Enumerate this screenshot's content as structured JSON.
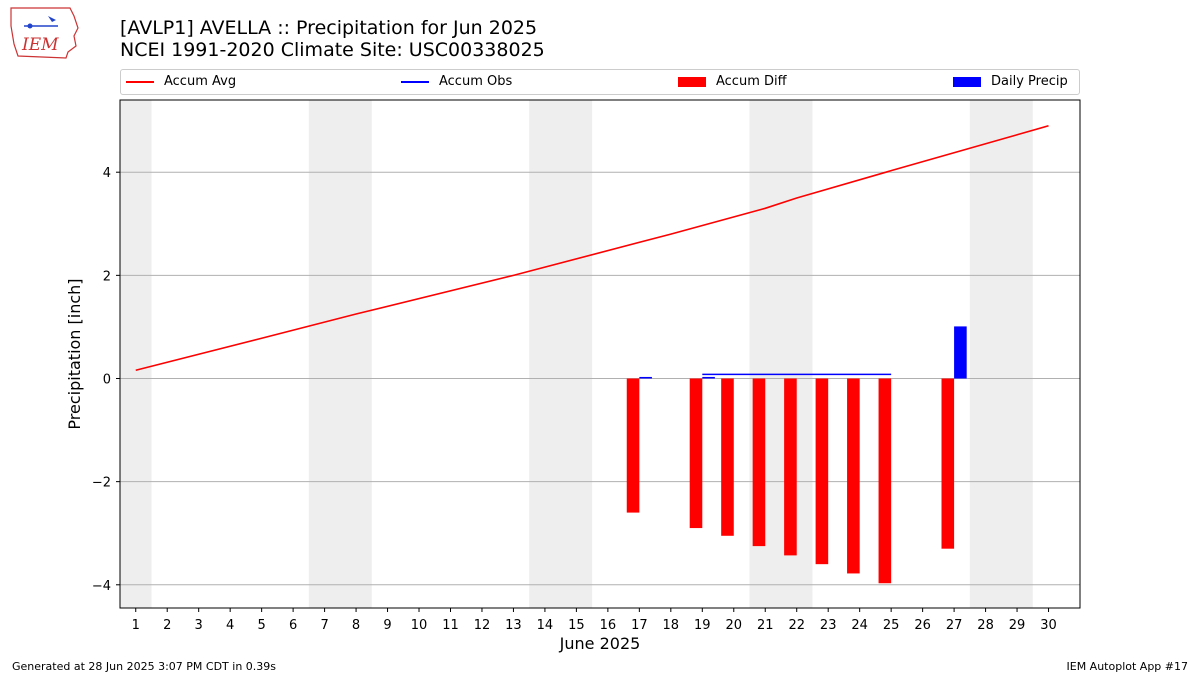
{
  "header": {
    "title_line1": "[AVLP1] AVELLA :: Precipitation for Jun 2025",
    "title_line2": "NCEI 1991-2020 Climate Site: USC00338025"
  },
  "logo": {
    "text": "IEM",
    "icon": "iem-logo-icon"
  },
  "legend": {
    "placement": "top, above plot, full width",
    "items": [
      {
        "label": "Accum Avg",
        "kind": "line",
        "color": "#ff0000"
      },
      {
        "label": "Accum Obs",
        "kind": "line",
        "color": "#0000ff"
      },
      {
        "label": "Accum Diff",
        "kind": "bar",
        "color": "#ff0000"
      },
      {
        "label": "Daily Precip",
        "kind": "bar",
        "color": "#0000ff"
      }
    ]
  },
  "footer": {
    "generated": "Generated at 28 Jun 2025 3:07 PM CDT in 0.39s",
    "app": "IEM Autoplot App #17"
  },
  "chart_data": {
    "type": "bar",
    "xlabel": "June 2025",
    "ylabel": "Precipitation [inch]",
    "xlim": [
      0.5,
      31.0
    ],
    "ylim": [
      -4.45,
      5.4
    ],
    "grid": "horizontal",
    "x_ticks": [
      1,
      2,
      3,
      4,
      5,
      6,
      7,
      8,
      9,
      10,
      11,
      12,
      13,
      14,
      15,
      16,
      17,
      18,
      19,
      20,
      21,
      22,
      23,
      24,
      25,
      26,
      27,
      28,
      29,
      30
    ],
    "y_ticks": [
      -4,
      -2,
      0,
      2,
      4
    ],
    "y_tick_labels": [
      "−4",
      "−2",
      "0",
      "2",
      "4"
    ],
    "weekend_shading": [
      [
        0.5,
        1.5
      ],
      [
        6.5,
        8.5
      ],
      [
        13.5,
        15.5
      ],
      [
        20.5,
        22.5
      ],
      [
        27.5,
        29.5
      ]
    ],
    "weekend_color": "#eeeeee",
    "series": [
      {
        "name": "Accum Avg",
        "type": "line",
        "color": "#ff0000",
        "x": [
          1,
          5,
          8,
          13,
          18,
          21,
          22,
          25,
          30
        ],
        "y": [
          0.16,
          0.78,
          1.25,
          2.0,
          2.8,
          3.3,
          3.5,
          4.03,
          4.9
        ]
      },
      {
        "name": "Accum Obs",
        "type": "line",
        "color": "#0000ff",
        "x": [
          19,
          20,
          21,
          22,
          23,
          24,
          25
        ],
        "y": [
          0.08,
          0.08,
          0.08,
          0.08,
          0.08,
          0.08,
          0.08
        ]
      },
      {
        "name": "Accum Diff",
        "type": "bar",
        "color": "#ff0000",
        "x": [
          17,
          19,
          20,
          21,
          22,
          23,
          24,
          25,
          27
        ],
        "y": [
          -2.6,
          -2.9,
          -3.05,
          -3.25,
          -3.43,
          -3.6,
          -3.78,
          -3.97,
          -3.3
        ]
      },
      {
        "name": "Daily Precip",
        "type": "bar",
        "color": "#0000ff",
        "x": [
          17,
          19,
          27
        ],
        "y": [
          0.03,
          0.03,
          1.01
        ]
      }
    ]
  }
}
